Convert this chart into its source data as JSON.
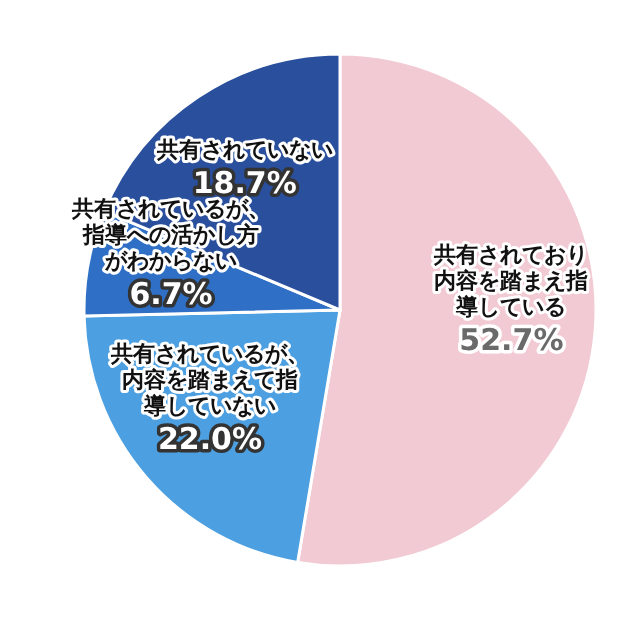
{
  "chart_data": {
    "type": "pie",
    "categories": [
      "共有されており内容を踏まえ指導している",
      "共有されているが、内容を踏まえて指導していない",
      "共有されているが、指導への活かし方がわからない",
      "共有されていない"
    ],
    "values": [
      52.7,
      22.0,
      6.7,
      18.7
    ],
    "value_labels": [
      "52.7%",
      "22.0%",
      "6.7%",
      "18.7%"
    ],
    "colors": [
      "#f2cad4",
      "#4c9fe0",
      "#2f70c6",
      "#2a4f9c"
    ]
  }
}
